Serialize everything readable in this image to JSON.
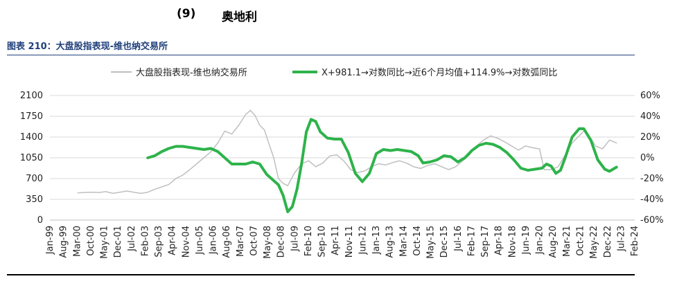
{
  "heading": {
    "number": "(9)",
    "text": "奥地利"
  },
  "figure_title": "图表 210：大盘股指表现-维也纳交易所",
  "colors": {
    "index_line": "#bfbfbf",
    "yoy_line": "#2db34a",
    "grid": "#d9d9d9",
    "title": "#1f3f7a"
  },
  "chart_data": {
    "type": "line",
    "legend_position": "top",
    "grid": true,
    "x_ticks": [
      "Jan-99",
      "Aug-99",
      "Mar-00",
      "Oct-00",
      "May-01",
      "Dec-01",
      "Jul-02",
      "Feb-03",
      "Sep-03",
      "Apr-04",
      "Nov-04",
      "Jun-05",
      "Jan-06",
      "Aug-06",
      "Mar-07",
      "Oct-07",
      "May-08",
      "Dec-08",
      "Jul-09",
      "Feb-10",
      "Sep-10",
      "Apr-11",
      "Nov-11",
      "Jun-12",
      "Jan-13",
      "Aug-13",
      "Mar-14",
      "Oct-14",
      "May-15",
      "Dec-15",
      "Jul-16",
      "Feb-17",
      "Sep-17",
      "Apr-18",
      "Nov-18",
      "Jun-19",
      "Jan-20",
      "Aug-20",
      "Mar-21",
      "Oct-21",
      "May-22",
      "Dec-22",
      "Jul-23",
      "Feb-24"
    ],
    "y_left": {
      "min": 0,
      "max": 2100,
      "ticks": [
        0,
        350,
        700,
        1050,
        1400,
        1750,
        2100
      ]
    },
    "y_right": {
      "min": -60,
      "max": 60,
      "ticks": [
        "-60%",
        "-40%",
        "-20%",
        "0%",
        "20%",
        "40%",
        "60%"
      ]
    },
    "series": [
      {
        "name": "大盘股指表现-维也纳交易所",
        "axis": "left",
        "x_start": "Mar-00",
        "points": [
          [
            2000.2,
            460
          ],
          [
            2000.5,
            465
          ],
          [
            2000.8,
            470
          ],
          [
            2001.1,
            465
          ],
          [
            2001.4,
            480
          ],
          [
            2001.7,
            450
          ],
          [
            2002.0,
            470
          ],
          [
            2002.3,
            490
          ],
          [
            2002.6,
            470
          ],
          [
            2002.9,
            450
          ],
          [
            2003.2,
            470
          ],
          [
            2003.5,
            520
          ],
          [
            2003.8,
            560
          ],
          [
            2004.1,
            600
          ],
          [
            2004.4,
            700
          ],
          [
            2004.7,
            760
          ],
          [
            2005.0,
            850
          ],
          [
            2005.3,
            950
          ],
          [
            2005.6,
            1050
          ],
          [
            2005.9,
            1150
          ],
          [
            2006.2,
            1300
          ],
          [
            2006.5,
            1500
          ],
          [
            2006.8,
            1450
          ],
          [
            2007.1,
            1600
          ],
          [
            2007.4,
            1780
          ],
          [
            2007.6,
            1850
          ],
          [
            2007.8,
            1760
          ],
          [
            2008.0,
            1600
          ],
          [
            2008.2,
            1520
          ],
          [
            2008.4,
            1280
          ],
          [
            2008.6,
            1050
          ],
          [
            2008.8,
            700
          ],
          [
            2009.0,
            620
          ],
          [
            2009.2,
            580
          ],
          [
            2009.5,
            800
          ],
          [
            2009.8,
            950
          ],
          [
            2010.1,
            1000
          ],
          [
            2010.4,
            900
          ],
          [
            2010.7,
            960
          ],
          [
            2011.0,
            1080
          ],
          [
            2011.3,
            1100
          ],
          [
            2011.6,
            1000
          ],
          [
            2011.9,
            850
          ],
          [
            2012.2,
            800
          ],
          [
            2012.5,
            830
          ],
          [
            2012.8,
            900
          ],
          [
            2013.1,
            950
          ],
          [
            2013.4,
            930
          ],
          [
            2013.7,
            970
          ],
          [
            2014.0,
            1000
          ],
          [
            2014.3,
            960
          ],
          [
            2014.6,
            900
          ],
          [
            2014.9,
            870
          ],
          [
            2015.2,
            920
          ],
          [
            2015.5,
            950
          ],
          [
            2015.8,
            900
          ],
          [
            2016.1,
            850
          ],
          [
            2016.4,
            900
          ],
          [
            2016.7,
            1000
          ],
          [
            2017.0,
            1100
          ],
          [
            2017.3,
            1250
          ],
          [
            2017.6,
            1350
          ],
          [
            2017.9,
            1420
          ],
          [
            2018.2,
            1380
          ],
          [
            2018.5,
            1320
          ],
          [
            2018.8,
            1250
          ],
          [
            2019.1,
            1180
          ],
          [
            2019.4,
            1250
          ],
          [
            2019.7,
            1220
          ],
          [
            2020.0,
            1200
          ],
          [
            2020.2,
            850
          ],
          [
            2020.5,
            850
          ],
          [
            2020.8,
            900
          ],
          [
            2021.1,
            1100
          ],
          [
            2021.4,
            1300
          ],
          [
            2021.7,
            1420
          ],
          [
            2021.9,
            1500
          ],
          [
            2022.2,
            1380
          ],
          [
            2022.4,
            1250
          ],
          [
            2022.7,
            1200
          ],
          [
            2023.0,
            1350
          ],
          [
            2023.3,
            1300
          ]
        ]
      },
      {
        "name": "X+981.1→对数同比→近6个月均值+114.9%→对数弧同比",
        "axis": "right",
        "points": [
          [
            2003.2,
            0
          ],
          [
            2003.5,
            2
          ],
          [
            2003.8,
            6
          ],
          [
            2004.1,
            9
          ],
          [
            2004.4,
            11
          ],
          [
            2004.7,
            11
          ],
          [
            2005.0,
            10
          ],
          [
            2005.3,
            9
          ],
          [
            2005.6,
            8
          ],
          [
            2005.9,
            9
          ],
          [
            2006.2,
            6
          ],
          [
            2006.5,
            0
          ],
          [
            2006.8,
            -6
          ],
          [
            2007.1,
            -6
          ],
          [
            2007.4,
            -6
          ],
          [
            2007.7,
            -4
          ],
          [
            2008.0,
            -6
          ],
          [
            2008.3,
            -16
          ],
          [
            2008.6,
            -22
          ],
          [
            2008.8,
            -26
          ],
          [
            2009.0,
            -36
          ],
          [
            2009.2,
            -52
          ],
          [
            2009.4,
            -47
          ],
          [
            2009.6,
            -30
          ],
          [
            2009.8,
            -5
          ],
          [
            2010.0,
            25
          ],
          [
            2010.2,
            37
          ],
          [
            2010.4,
            35
          ],
          [
            2010.6,
            25
          ],
          [
            2010.9,
            19
          ],
          [
            2011.2,
            18
          ],
          [
            2011.5,
            18
          ],
          [
            2011.8,
            5
          ],
          [
            2012.1,
            -15
          ],
          [
            2012.4,
            -23
          ],
          [
            2012.7,
            -15
          ],
          [
            2013.0,
            4
          ],
          [
            2013.3,
            8
          ],
          [
            2013.6,
            7
          ],
          [
            2013.9,
            8
          ],
          [
            2014.2,
            7
          ],
          [
            2014.5,
            6
          ],
          [
            2014.8,
            2
          ],
          [
            2015.0,
            -5
          ],
          [
            2015.3,
            -4
          ],
          [
            2015.6,
            -2
          ],
          [
            2015.9,
            2
          ],
          [
            2016.2,
            1
          ],
          [
            2016.5,
            -4
          ],
          [
            2016.8,
            0
          ],
          [
            2017.1,
            7
          ],
          [
            2017.4,
            12
          ],
          [
            2017.7,
            14
          ],
          [
            2018.0,
            13
          ],
          [
            2018.3,
            10
          ],
          [
            2018.6,
            5
          ],
          [
            2018.9,
            -2
          ],
          [
            2019.2,
            -10
          ],
          [
            2019.5,
            -12
          ],
          [
            2019.8,
            -11
          ],
          [
            2020.1,
            -10
          ],
          [
            2020.3,
            -6
          ],
          [
            2020.5,
            -8
          ],
          [
            2020.7,
            -15
          ],
          [
            2020.9,
            -12
          ],
          [
            2021.1,
            0
          ],
          [
            2021.4,
            20
          ],
          [
            2021.7,
            28
          ],
          [
            2021.9,
            28
          ],
          [
            2022.2,
            17
          ],
          [
            2022.5,
            -2
          ],
          [
            2022.8,
            -11
          ],
          [
            2023.0,
            -13
          ],
          [
            2023.3,
            -9
          ]
        ]
      }
    ]
  }
}
